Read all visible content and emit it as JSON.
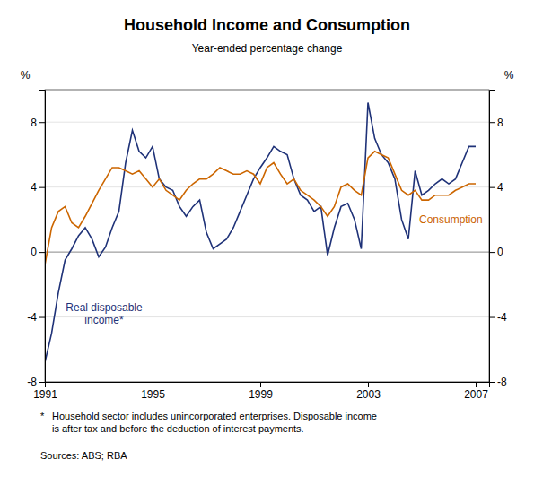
{
  "chart_data": {
    "type": "line",
    "title": "Household Income and Consumption",
    "subtitle": "Year-ended percentage change",
    "y_label": "%",
    "y2_label": "%",
    "xlim": [
      1991.0,
      2007.5
    ],
    "xticks": [
      1991,
      1995,
      1999,
      2003,
      2007
    ],
    "ylim": [
      -8,
      10
    ],
    "yticks": [
      -8,
      -4,
      0,
      4,
      8
    ],
    "y2lim": [
      -8,
      10
    ],
    "y2ticks": [
      -8,
      -4,
      0,
      4,
      8
    ],
    "grid": true,
    "x": [
      1991,
      1991.25,
      1991.5,
      1991.75,
      1992,
      1992.25,
      1992.5,
      1992.75,
      1993,
      1993.25,
      1993.5,
      1993.75,
      1994,
      1994.25,
      1994.5,
      1994.75,
      1995,
      1995.25,
      1995.5,
      1995.75,
      1996,
      1996.25,
      1996.5,
      1996.75,
      1997,
      1997.25,
      1997.5,
      1997.75,
      1998,
      1998.25,
      1998.5,
      1998.75,
      1999,
      1999.25,
      1999.5,
      1999.75,
      2000,
      2000.25,
      2000.5,
      2000.75,
      2001,
      2001.25,
      2001.5,
      2001.75,
      2002,
      2002.25,
      2002.5,
      2002.75,
      2003,
      2003.25,
      2003.5,
      2003.75,
      2004,
      2004.25,
      2004.5,
      2004.75,
      2005,
      2005.25,
      2005.5,
      2005.75,
      2006,
      2006.25,
      2006.5,
      2006.75,
      2007
    ],
    "series": [
      {
        "color": "#1f3278",
        "values": [
          -6.8,
          -5.0,
          -2.5,
          -0.5,
          0.2,
          1.0,
          1.5,
          0.8,
          -0.3,
          0.3,
          1.5,
          2.5,
          5.5,
          7.5,
          6.2,
          5.8,
          6.5,
          4.5,
          4.0,
          3.8,
          2.8,
          2.2,
          2.8,
          3.2,
          1.2,
          0.2,
          0.5,
          0.8,
          1.5,
          2.5,
          3.5,
          4.5,
          5.2,
          5.8,
          6.5,
          6.2,
          6.0,
          4.5,
          3.5,
          3.2,
          2.5,
          2.8,
          -0.2,
          1.5,
          2.8,
          3.0,
          2.0,
          0.2,
          9.2,
          7.0,
          6.0,
          5.5,
          4.5,
          2.0,
          0.8,
          5.0,
          3.5,
          3.8,
          4.2,
          4.5,
          4.2,
          4.5,
          5.5,
          6.5,
          6.5
        ]
      },
      {
        "color": "#cc6600",
        "values": [
          -0.8,
          1.5,
          2.5,
          2.8,
          1.8,
          1.5,
          2.2,
          3.0,
          3.8,
          4.5,
          5.2,
          5.2,
          5.0,
          4.8,
          5.0,
          4.5,
          4.0,
          4.5,
          3.8,
          3.5,
          3.2,
          3.8,
          4.2,
          4.5,
          4.5,
          4.8,
          5.2,
          5.0,
          4.8,
          4.8,
          5.0,
          4.8,
          4.2,
          5.2,
          5.5,
          4.8,
          4.2,
          4.5,
          3.8,
          3.5,
          3.2,
          2.8,
          2.2,
          2.8,
          4.0,
          4.2,
          3.8,
          3.5,
          5.8,
          6.2,
          6.0,
          5.8,
          4.8,
          3.8,
          3.5,
          3.8,
          3.2,
          3.2,
          3.5,
          3.5,
          3.5,
          3.8,
          4.0,
          4.2,
          4.2
        ]
      }
    ],
    "annotations": [
      {
        "text": "Real disposable\nincome*",
        "x": 1993.2,
        "y": -3.8,
        "color": "#1f3278"
      },
      {
        "text": "Consumption",
        "x": 2004.9,
        "y": 2.0,
        "color": "#cc6600"
      }
    ],
    "footnote_marker": "*",
    "footnote": "Household sector includes unincorporated enterprises. Disposable income\nis after tax and before the deduction of interest payments.",
    "source": "Sources: ABS; RBA"
  }
}
